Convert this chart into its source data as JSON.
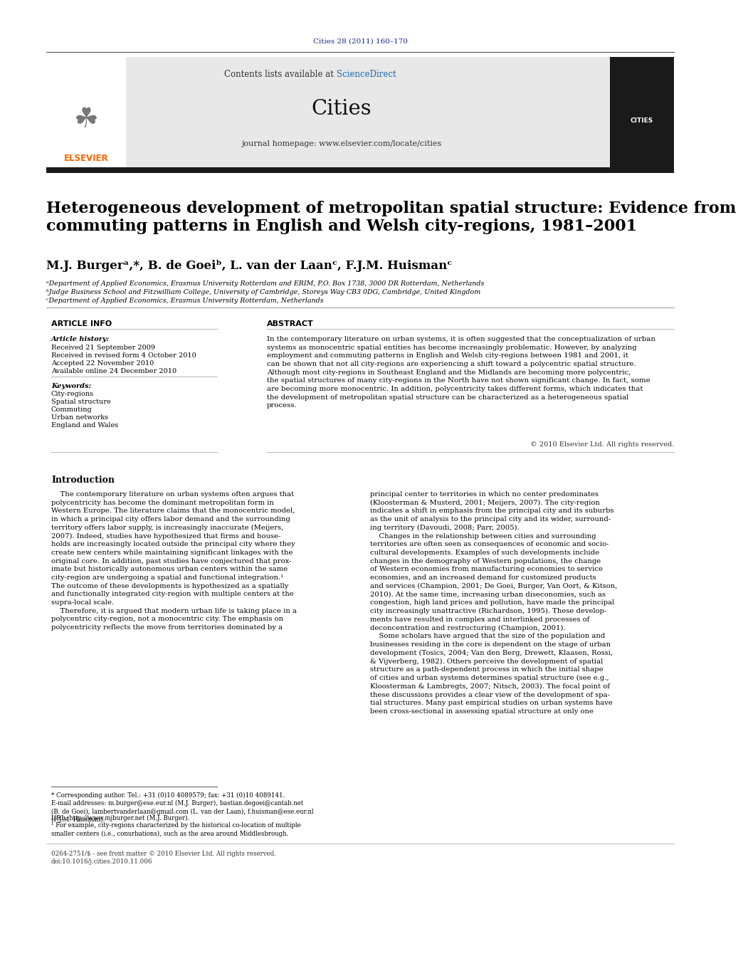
{
  "page_bg": "#ffffff",
  "journal_ref": "Cities 28 (2011) 160–170",
  "journal_ref_color": "#1a2a8a",
  "contents_text": "Contents lists available at ",
  "sciencedirect_text": "ScienceDirect",
  "sciencedirect_color": "#1a6aaa",
  "journal_name": "Cities",
  "journal_homepage": "journal homepage: www.elsevier.com/locate/cities",
  "elsevier_color": "#ff6600",
  "header_bg": "#e8e8e8",
  "header_bar_color": "#1a1a1a",
  "article_title": "Heterogeneous development of metropolitan spatial structure: Evidence from\ncommuting patterns in English and Welsh city-regions, 1981–2001",
  "authors": "M.J. Burgerᵃ,*, B. de Goeiᵇ, L. van der Laanᶜ, F.J.M. Huismanᶜ",
  "affil_a": "ᵃDepartment of Applied Economics, Erasmus University Rotterdam and ERIM, P.O. Box 1738, 3000 DR Rotterdam, Netherlands",
  "affil_b": "ᵇJudge Business School and Fitzwilliam College, University of Cambridge, Storeys Way CB3 0DG, Cambridge, United Kingdom",
  "affil_c": "ᶜDepartment of Applied Economics, Erasmus University Rotterdam, Netherlands",
  "article_info_heading": "ARTICLE INFO",
  "abstract_heading": "ABSTRACT",
  "article_history_label": "Article history:",
  "received1": "Received 21 September 2009",
  "received2": "Received in revised form 4 October 2010",
  "accepted": "Accepted 22 November 2010",
  "available": "Available online 24 December 2010",
  "keywords_label": "Keywords:",
  "keywords": [
    "City-regions",
    "Spatial structure",
    "Commuting",
    "Urban networks",
    "England and Wales"
  ],
  "abstract_text": "In the contemporary literature on urban systems, it is often suggested that the conceptualization of urban\nsystems as monocentric spatial entities has become increasingly problematic. However, by analyzing\nemployment and commuting patterns in English and Welsh city-regions between 1981 and 2001, it\ncan be shown that not all city-regions are experiencing a shift toward a polycentric spatial structure.\nAlthough most city-regions in Southeast England and the Midlands are becoming more polycentric,\nthe spatial structures of many city-regions in the North have not shown significant change. In fact, some\nare becoming more monocentric. In addition, polycentricity takes different forms, which indicates that\nthe development of metropolitan spatial structure can be characterized as a heterogeneous spatial\nprocess.",
  "copyright": "© 2010 Elsevier Ltd. All rights reserved.",
  "introduction_heading": "Introduction",
  "intro_left": "    The contemporary literature on urban systems often argues that\npolycentricity has become the dominant metropolitan form in\nWestern Europe. The literature claims that the monocentric model,\nin which a principal city offers labor demand and the surrounding\nterritory offers labor supply, is increasingly inaccurate (Meijers,\n2007). Indeed, studies have hypothesized that firms and house-\nholds are increasingly located outside the principal city where they\ncreate new centers while maintaining significant linkages with the\noriginal core. In addition, past studies have conjectured that prox-\nimate but historically autonomous urban centers within the same\ncity-region are undergoing a spatial and functional integration.¹\nThe outcome of these developments is hypothesized as a spatially\nand functionally integrated city-region with multiple centers at the\nsupra-local scale.\n    Therefore, it is argued that modern urban life is taking place in a\npolycentric city-region, not a monocentric city. The emphasis on\npolycentricity reflects the move from territories dominated by a",
  "intro_right": "principal center to territories in which no center predominates\n(Kloosterman & Musterd, 2001; Meijers, 2007). The city-region\nindicates a shift in emphasis from the principal city and its suburbs\nas the unit of analysis to the principal city and its wider, surround-\ning territory (Davoudi, 2008; Parr, 2005).\n    Changes in the relationship between cities and surrounding\nterritories are often seen as consequences of economic and socio-\ncultural developments. Examples of such developments include\nchanges in the demography of Western populations, the change\nof Western economies from manufacturing economies to service\neconomies, and an increased demand for customized products\nand services (Champion, 2001; De Goei, Burger, Van Oort, & Kitson,\n2010). At the same time, increasing urban diseconomies, such as\ncongestion, high land prices and pollution, have made the principal\ncity increasingly unattractive (Richardson, 1995). These develop-\nments have resulted in complex and interlinked processes of\ndeconcentration and restructuring (Champion, 2001).\n    Some scholars have argued that the size of the population and\nbusinesses residing in the core is dependent on the stage of urban\ndevelopment (Tosics, 2004; Van den Berg, Drewett, Klaasen, Rossi,\n& Vijverberg, 1982). Others perceive the development of spatial\nstructure as a path-dependent process in which the initial shape\nof cities and urban systems determines spatial structure (see e.g.,\nKloosterman & Lambregts, 2007; Nitsch, 2003). The focal point of\nthese discussions provides a clear view of the development of spa-\ntial structures. Many past empirical studies on urban systems have\nbeen cross-sectional in assessing spatial structure at only one",
  "footnote_star": "* Corresponding author. Tel.: +31 (0)10 4089579; fax: +31 (0)10 4089141.",
  "footnote_email": "E-mail addresses: m.burger@ese.eur.nl (M.J. Burger), bastian.degoei@cantab.net\n(B. de Goei), lambertvanderlaan@gmail.com (L. van der Laan), f.huisman@ese.eur.nl\n(F.J.M. Huisman).",
  "footnote_url": "URL: http://www.mjburger.net (M.J. Burger).",
  "footnote_1": "¹ For example, city-regions characterized by the historical co-location of multiple\nsmaller centers (i.e., conurbations), such as the area around Middlesbrough.",
  "issn_text": "0264-2751/$ - see front matter © 2010 Elsevier Ltd. All rights reserved.",
  "doi_text": "doi:10.1016/j.cities.2010.11.006"
}
